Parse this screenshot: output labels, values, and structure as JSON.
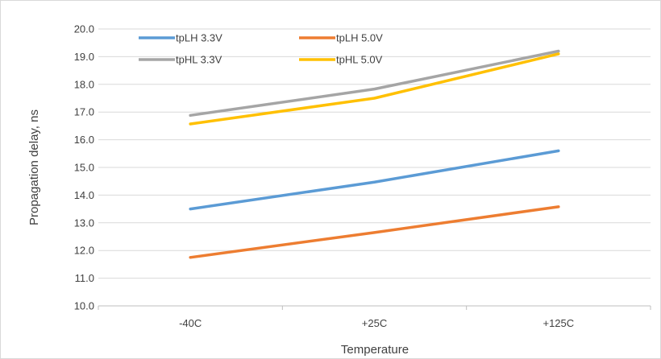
{
  "chart_data": {
    "type": "line",
    "title": "",
    "xlabel": "Temperature",
    "ylabel": "Propagation delay, ns",
    "categories": [
      "-40C",
      "+25C",
      "+125C"
    ],
    "ylim": [
      10.0,
      20.0
    ],
    "yticks": [
      "10.0",
      "11.0",
      "12.0",
      "13.0",
      "14.0",
      "15.0",
      "16.0",
      "17.0",
      "18.0",
      "19.0",
      "20.0"
    ],
    "grid": "horizontal",
    "legend_position": "top-left inside plot",
    "series": [
      {
        "name": "tpLH 3.3V",
        "color": "#5b9bd5",
        "values": [
          13.5,
          14.47,
          15.6
        ]
      },
      {
        "name": "tpLH 5.0V",
        "color": "#ed7d31",
        "values": [
          11.75,
          12.65,
          13.58
        ]
      },
      {
        "name": "tpHL 3.3V",
        "color": "#a5a5a5",
        "values": [
          16.88,
          17.83,
          19.2
        ]
      },
      {
        "name": "tpHL 5.0V",
        "color": "#ffc000",
        "values": [
          16.57,
          17.5,
          19.1
        ]
      }
    ]
  }
}
